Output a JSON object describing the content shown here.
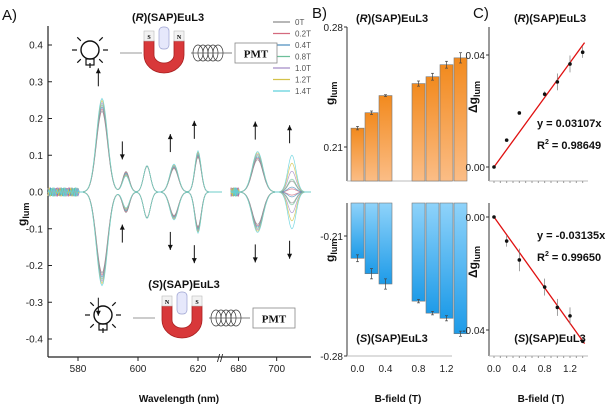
{
  "panel_labels": {
    "a": "A)",
    "b": "B)",
    "c": "C)"
  },
  "illustration": {
    "top_title_prefix": "R",
    "top_title_suffix": "(SAP)EuL3",
    "bottom_title_prefix": "S",
    "bottom_title_suffix": "(SAP)EuL3",
    "detector": "PMT",
    "magnet_top": [
      "S",
      "N"
    ],
    "magnet_bottom": [
      "N",
      "S"
    ]
  },
  "chart_data": [
    {
      "id": "A",
      "type": "line",
      "xlabel": "Wavelength (nm)",
      "ylabel": "g",
      "ylabel_sub": "lum",
      "ylim": [
        -0.45,
        0.45
      ],
      "yticks": [
        "0.4",
        "0.3",
        "0.2",
        "0.1",
        "0.0",
        "-0.1",
        "-0.2",
        "-0.3",
        "-0.4"
      ],
      "ytick_values": [
        0.4,
        0.3,
        0.2,
        0.1,
        0.0,
        -0.1,
        -0.2,
        -0.3,
        -0.4
      ],
      "segments": [
        {
          "xlim": [
            570,
            630
          ]
        },
        {
          "xlim": [
            675,
            718
          ]
        }
      ],
      "xticks": [
        "580",
        "600",
        "620",
        "680",
        "700"
      ],
      "xtick_values": [
        580,
        600,
        620,
        680,
        700
      ],
      "legend": [
        "0T",
        "0.2T",
        "0.4T",
        "0.8T",
        "1.0T",
        "1.2T",
        "1.4T"
      ],
      "legend_placement": "top-right",
      "series_colors": [
        "#8c8c8c",
        "#d46a7e",
        "#4f8fbf",
        "#6dbf9a",
        "#a48cc8",
        "#d4c24a",
        "#5fd0dc"
      ],
      "peaks_R": [
        {
          "center": 588,
          "width": 2.6,
          "amp_0T": 0.22,
          "amp_14T": 0.255,
          "arrow": "up"
        },
        {
          "center": 596,
          "width": 1.6,
          "amp_0T": 0.056,
          "amp_14T": 0.044,
          "arrow": "down"
        },
        {
          "center": 603,
          "width": 1.6,
          "amp_0T": 0.07,
          "amp_14T": 0.072
        },
        {
          "center": 612,
          "width": 2.0,
          "amp_0T": 0.064,
          "amp_14T": 0.076,
          "arrow": "up"
        },
        {
          "center": 620,
          "width": 1.5,
          "amp_0T": 0.095,
          "amp_14T": 0.112,
          "arrow": "up"
        },
        {
          "center": 690,
          "width": 4.0,
          "amp_0T": 0.088,
          "amp_14T": 0.11,
          "arrow": "up"
        },
        {
          "center": 708,
          "width": 3.0,
          "amp_0T": -0.03,
          "amp_14T": 0.1,
          "arrow": "up"
        }
      ]
    },
    {
      "id": "B-top",
      "type": "bar",
      "title_prefix": "R",
      "title_suffix": "(SAP)EuL3",
      "ylabel": "g",
      "ylabel_sub": "lum",
      "ylim": [
        0.19,
        0.28
      ],
      "yticks": [
        "0.28",
        "0.21"
      ],
      "ytick_values": [
        0.28,
        0.21
      ],
      "categories": [
        0.0,
        0.2,
        0.4,
        0.8,
        1.0,
        1.2,
        1.4
      ],
      "values": [
        0.221,
        0.23,
        0.24,
        0.247,
        0.251,
        0.258,
        0.262
      ],
      "errors": [
        0.001,
        0.001,
        0.0005,
        0.0015,
        0.002,
        0.002,
        0.003
      ],
      "color": "#f28a1e"
    },
    {
      "id": "B-bottom",
      "type": "bar",
      "title_prefix": "S",
      "title_suffix": "(SAP)EuL3",
      "ylabel": "g",
      "ylabel_sub": "lum",
      "ylim": [
        -0.28,
        -0.19
      ],
      "yticks": [
        "-0.21",
        "-0.28"
      ],
      "ytick_values": [
        -0.21,
        -0.28
      ],
      "categories": [
        0.0,
        0.2,
        0.4,
        0.8,
        1.0,
        1.2,
        1.4
      ],
      "values": [
        -0.223,
        -0.232,
        -0.238,
        -0.248,
        -0.255,
        -0.258,
        -0.267
      ],
      "errors": [
        0.002,
        0.003,
        0.003,
        0.001,
        0.001,
        0.0015,
        0.0015
      ],
      "color": "#1e9be8",
      "xlabel": "B-field (T)",
      "xticks": [
        "0.0",
        "0.4",
        "0.8",
        "1.2"
      ],
      "xtick_values": [
        0.0,
        0.4,
        0.8,
        1.2
      ]
    },
    {
      "id": "C-top",
      "type": "scatter",
      "title_prefix": "R",
      "title_suffix": "(SAP)EuL3",
      "ylabel": "Δg",
      "ylabel_sub": "lum",
      "ylim": [
        -0.005,
        0.048
      ],
      "yticks": [
        "0.04",
        "0.00"
      ],
      "ytick_values": [
        0.04,
        0.0
      ],
      "x": [
        0.0,
        0.2,
        0.4,
        0.8,
        1.0,
        1.2,
        1.4
      ],
      "y": [
        0.0,
        0.0096,
        0.0193,
        0.026,
        0.0304,
        0.0368,
        0.041
      ],
      "errors": [
        0,
        0,
        0,
        0.001,
        0.003,
        0.003,
        0.002
      ],
      "fit_slope": 0.03107,
      "fit_label": "y = 0.03107x",
      "r2_label": "R",
      "r2_value": " = 0.98649"
    },
    {
      "id": "C-bottom",
      "type": "scatter",
      "title_prefix": "S",
      "title_suffix": "(SAP)EuL3",
      "ylabel": "Δg",
      "ylabel_sub": "lum",
      "ylim": [
        -0.048,
        0.004
      ],
      "yticks": [
        "0.00",
        "-0.04"
      ],
      "ytick_values": [
        0.0,
        -0.04
      ],
      "x": [
        0.0,
        0.2,
        0.4,
        0.8,
        1.0,
        1.2,
        1.4
      ],
      "y": [
        0.0,
        -0.0085,
        -0.0152,
        -0.0248,
        -0.032,
        -0.035,
        -0.044
      ],
      "errors": [
        0,
        0.002,
        0.004,
        0.003,
        0.003,
        0.003,
        0
      ],
      "fit_slope": -0.03135,
      "fit_label": "y = -0.03135x",
      "r2_label": "R",
      "r2_value": " = 0.99650",
      "xlabel": "B-field (T)",
      "xticks": [
        "0.0",
        "0.4",
        "0.8",
        "1.2"
      ],
      "xtick_values": [
        0.0,
        0.4,
        0.8,
        1.2
      ]
    }
  ]
}
